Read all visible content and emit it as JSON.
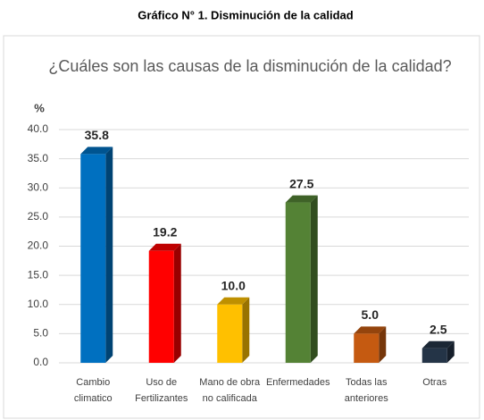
{
  "heading": "Gráfico N° 1. Disminución de la calidad",
  "chart_data": {
    "type": "bar3d",
    "title": "¿Cuáles son las causas de la disminución de la calidad?",
    "y_label": "%",
    "categories": [
      "Cambio\nclimatico",
      "Uso de\nFertilizantes",
      "Mano de obra\nno calificada",
      "Enfermedades",
      "Todas las\nanteriores",
      "Otras"
    ],
    "values": [
      35.8,
      19.2,
      10,
      27.5,
      5,
      2.5
    ],
    "value_labels": [
      "35.8",
      "19.2",
      "10.0",
      "27.5",
      "5.0",
      "2.5"
    ],
    "colors": [
      "#0070c0",
      "#ff0000",
      "#ffc000",
      "#548235",
      "#c55a11",
      "#243447"
    ],
    "ylim": [
      0,
      40
    ],
    "yticks": [
      {
        "value": 0,
        "label": "0.0"
      },
      {
        "value": 5,
        "label": "5.0"
      },
      {
        "value": 10,
        "label": "10.0"
      },
      {
        "value": 15,
        "label": "15.0"
      },
      {
        "value": 20,
        "label": "20.0"
      },
      {
        "value": 25,
        "label": "25.0"
      },
      {
        "value": 30,
        "label": "30.0"
      },
      {
        "value": 35,
        "label": "35.0"
      },
      {
        "value": 40,
        "label": "40.0"
      }
    ],
    "grid": true
  }
}
